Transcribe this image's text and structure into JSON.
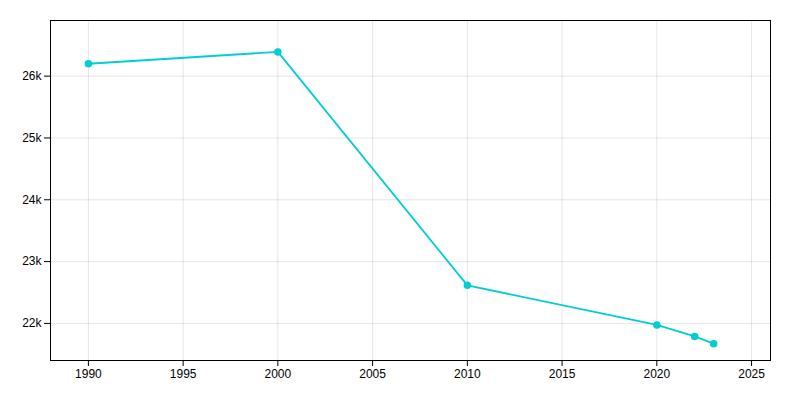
{
  "chart_data": {
    "type": "line",
    "x": [
      1990,
      2000,
      2010,
      2020,
      2022,
      2023
    ],
    "values": [
      26200,
      26392,
      22616,
      21976,
      21790,
      21672
    ],
    "color": "#00CED1",
    "marker": "circle",
    "xlim": [
      1988,
      2026
    ],
    "xticks": [
      1990,
      1995,
      2000,
      2005,
      2010,
      2015,
      2020,
      2025
    ],
    "ylim": [
      21400,
      26900
    ],
    "yticks": [
      {
        "value": 22000,
        "label": "22k"
      },
      {
        "value": 23000,
        "label": "23k"
      },
      {
        "value": 24000,
        "label": "24k"
      },
      {
        "value": 25000,
        "label": "25k"
      },
      {
        "value": 26000,
        "label": "26k"
      }
    ],
    "grid": true
  }
}
